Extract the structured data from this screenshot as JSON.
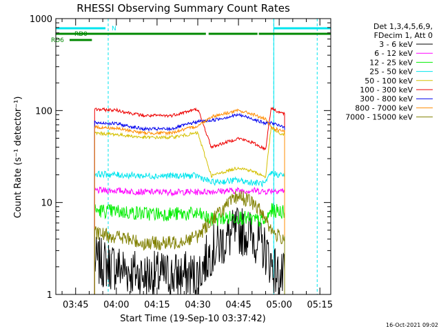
{
  "chart_data": {
    "type": "line",
    "title": "RHESSI Observing Summary Count Rates",
    "xlabel": "Start Time (19-Sep-10 03:37:42)",
    "ylabel": "Count Rate (s⁻¹ detector⁻¹)",
    "yscale": "log",
    "ylim": [
      1,
      1000
    ],
    "xlim": [
      "03:37:42",
      "05:19:00"
    ],
    "x_ticks": [
      "03:45",
      "04:00",
      "04:15",
      "04:30",
      "04:45",
      "05:00",
      "05:15"
    ],
    "y_ticks": [
      "1",
      "10",
      "100",
      "1000"
    ],
    "legend_header": [
      "Det 1,3,4,5,6,9,",
      "FDecim 1, Att 0"
    ],
    "legend_position": "right",
    "timestamp": "16-Oct-2021 09:02",
    "observing_states": {
      "night_label": "N",
      "night_color": "#00e5ee",
      "night_intervals": [
        [
          "03:37:42",
          "03:56:00"
        ],
        [
          "04:58:00",
          "05:19:00"
        ]
      ],
      "night_markers": [
        "03:57:00",
        "04:58:00",
        "05:14:00"
      ],
      "rd0_label": "RD0",
      "rd0_intervals": [
        [
          "03:37:42",
          "04:33:00"
        ],
        [
          "04:34:00",
          "04:52:00"
        ],
        [
          "04:52:30",
          "05:19:00"
        ]
      ],
      "rd6_label": "RD6",
      "rd6_intervals": [
        [
          "03:37:42",
          "03:51:00"
        ]
      ],
      "state_color": "#008800"
    },
    "series": [
      {
        "name": "3 - 6 keV",
        "color": "#000000",
        "level": "low",
        "x": [
          "03:52",
          "04:00",
          "04:10",
          "04:20",
          "04:30",
          "04:35",
          "04:45",
          "04:50",
          "04:55",
          "04:57",
          "05:00",
          "05:02"
        ],
        "y": [
          2.3,
          2.0,
          1.6,
          1.6,
          1.6,
          3.0,
          5.0,
          4.5,
          3.0,
          2.2,
          1.5,
          1.5
        ]
      },
      {
        "name": "6 - 12 keV",
        "color": "#ff00ff",
        "level": "flat",
        "x": [
          "03:52",
          "04:00",
          "04:10",
          "04:20",
          "04:30",
          "04:35",
          "04:45",
          "04:50",
          "04:55",
          "04:57",
          "05:00",
          "05:02"
        ],
        "y": [
          13.5,
          13.5,
          13.0,
          13.0,
          13.0,
          13.2,
          13.5,
          13.5,
          13.2,
          13.5,
          13.5,
          13.5
        ]
      },
      {
        "name": "12 - 25 keV",
        "color": "#00ee00",
        "level": "mid",
        "x": [
          "03:52",
          "04:00",
          "04:10",
          "04:20",
          "04:30",
          "04:35",
          "04:45",
          "04:50",
          "04:55",
          "04:57",
          "05:00",
          "05:02"
        ],
        "y": [
          8.2,
          8.0,
          7.6,
          7.5,
          7.5,
          6.5,
          7.0,
          6.5,
          6.2,
          8.2,
          8.0,
          8.0
        ]
      },
      {
        "name": "25 - 50 keV",
        "color": "#00e5ee",
        "level": "flat",
        "x": [
          "03:52",
          "04:00",
          "04:10",
          "04:20",
          "04:30",
          "04:35",
          "04:45",
          "04:50",
          "04:55",
          "04:57",
          "05:00",
          "05:02"
        ],
        "y": [
          20.5,
          20.0,
          19.5,
          19.5,
          19.5,
          16.5,
          17.5,
          16.5,
          16.0,
          21.0,
          20.0,
          20.0
        ]
      },
      {
        "name": "50 - 100 keV",
        "color": "#d4c000",
        "level": "high",
        "x": [
          "03:52",
          "04:00",
          "04:10",
          "04:20",
          "04:30",
          "04:35",
          "04:45",
          "04:50",
          "04:55",
          "04:57",
          "05:00",
          "05:02"
        ],
        "y": [
          57,
          55,
          51,
          51,
          57,
          19.5,
          24,
          22,
          19,
          65,
          56,
          55
        ]
      },
      {
        "name": "100 - 300 keV",
        "color": "#ee0000",
        "level": "high",
        "x": [
          "03:52",
          "04:00",
          "04:10",
          "04:20",
          "04:30",
          "04:35",
          "04:45",
          "04:50",
          "04:55",
          "04:57",
          "05:00",
          "05:02"
        ],
        "y": [
          103,
          101,
          88,
          88,
          104,
          40,
          50,
          45,
          38,
          107,
          96,
          92
        ]
      },
      {
        "name": "300 - 800 keV",
        "color": "#0000ee",
        "level": "high",
        "x": [
          "03:52",
          "04:00",
          "04:10",
          "04:20",
          "04:30",
          "04:35",
          "04:45",
          "04:50",
          "04:55",
          "04:57",
          "05:00",
          "05:02"
        ],
        "y": [
          74,
          72,
          63,
          63,
          76,
          78,
          90,
          82,
          72,
          74,
          68,
          67
        ]
      },
      {
        "name": "800 - 7000 keV",
        "color": "#ff8c00",
        "level": "high",
        "x": [
          "03:52",
          "04:00",
          "04:10",
          "04:20",
          "04:30",
          "04:35",
          "04:45",
          "04:50",
          "04:55",
          "04:57",
          "05:00",
          "05:02"
        ],
        "y": [
          66,
          64,
          57,
          57,
          68,
          86,
          100,
          92,
          80,
          66,
          61,
          60
        ]
      },
      {
        "name": "7000 - 15000 keV",
        "color": "#808000",
        "level": "mid",
        "x": [
          "03:52",
          "04:00",
          "04:10",
          "04:20",
          "04:30",
          "04:35",
          "04:45",
          "04:50",
          "04:55",
          "04:57",
          "05:00",
          "05:02"
        ],
        "y": [
          4.6,
          4.3,
          3.6,
          3.6,
          4.3,
          6.5,
          12,
          10,
          7.0,
          5.0,
          4.2,
          4.2
        ]
      }
    ]
  }
}
